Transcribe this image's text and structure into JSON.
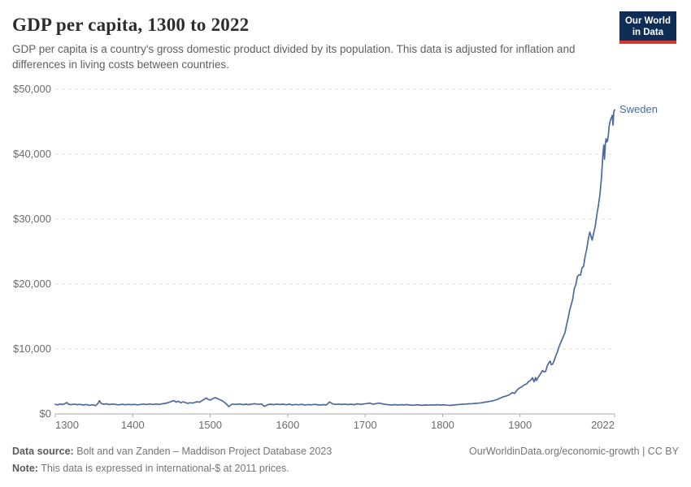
{
  "header": {
    "title": "GDP per capita, 1300 to 2022",
    "subtitle": "GDP per capita is a country's gross domestic product divided by its population. This data is adjusted for inflation and differences in living costs between countries.",
    "logo": {
      "line1": "Our World",
      "line2": "in Data",
      "bg": "#0d2d54",
      "accent": "#d6382f"
    }
  },
  "footer": {
    "source_label": "Data source:",
    "source_text": "Bolt and van Zanden – Maddison Project Database 2023",
    "note_label": "Note:",
    "note_text": "This data is expressed in international-$ at 2011 prices.",
    "link": "OurWorldinData.org/economic-growth | CC BY"
  },
  "chart_data": {
    "type": "line",
    "title": "GDP per capita, 1300 to 2022",
    "xlabel": "",
    "ylabel": "",
    "xlim": [
      1300,
      2022
    ],
    "ylim": [
      0,
      50000
    ],
    "grid": "horizontal-dashed",
    "legend": "end-of-line-label",
    "axis_color": "#a9a9a9",
    "grid_color": "#dcdcdc",
    "x_ticks": [
      {
        "value": 1300,
        "label": "1300"
      },
      {
        "value": 1400,
        "label": "1400"
      },
      {
        "value": 1500,
        "label": "1500"
      },
      {
        "value": 1600,
        "label": "1600"
      },
      {
        "value": 1700,
        "label": "1700"
      },
      {
        "value": 1800,
        "label": "1800"
      },
      {
        "value": 1900,
        "label": "1900"
      },
      {
        "value": 2022,
        "label": "2022"
      }
    ],
    "y_ticks": [
      {
        "value": 0,
        "label": "$0"
      },
      {
        "value": 10000,
        "label": "$10,000"
      },
      {
        "value": 20000,
        "label": "$20,000"
      },
      {
        "value": 30000,
        "label": "$30,000"
      },
      {
        "value": 40000,
        "label": "$40,000"
      },
      {
        "value": 50000,
        "label": "$50,000"
      }
    ],
    "series": [
      {
        "name": "Sweden",
        "color": "#4c6a9c",
        "points": [
          [
            1300,
            1480
          ],
          [
            1303,
            1400
          ],
          [
            1306,
            1520
          ],
          [
            1310,
            1450
          ],
          [
            1313,
            1620
          ],
          [
            1315,
            1750
          ],
          [
            1317,
            1500
          ],
          [
            1320,
            1430
          ],
          [
            1324,
            1510
          ],
          [
            1328,
            1420
          ],
          [
            1332,
            1480
          ],
          [
            1336,
            1380
          ],
          [
            1340,
            1450
          ],
          [
            1344,
            1330
          ],
          [
            1348,
            1410
          ],
          [
            1352,
            1280
          ],
          [
            1355,
            1600
          ],
          [
            1357,
            2050
          ],
          [
            1359,
            1650
          ],
          [
            1362,
            1500
          ],
          [
            1366,
            1560
          ],
          [
            1370,
            1450
          ],
          [
            1374,
            1520
          ],
          [
            1378,
            1460
          ],
          [
            1382,
            1400
          ],
          [
            1386,
            1490
          ],
          [
            1390,
            1430
          ],
          [
            1394,
            1470
          ],
          [
            1398,
            1420
          ],
          [
            1402,
            1470
          ],
          [
            1406,
            1400
          ],
          [
            1410,
            1460
          ],
          [
            1414,
            1530
          ],
          [
            1418,
            1450
          ],
          [
            1422,
            1540
          ],
          [
            1426,
            1460
          ],
          [
            1430,
            1520
          ],
          [
            1434,
            1470
          ],
          [
            1438,
            1560
          ],
          [
            1442,
            1620
          ],
          [
            1446,
            1750
          ],
          [
            1450,
            1930
          ],
          [
            1453,
            2060
          ],
          [
            1456,
            1820
          ],
          [
            1459,
            1960
          ],
          [
            1462,
            1720
          ],
          [
            1465,
            1870
          ],
          [
            1468,
            1760
          ],
          [
            1471,
            1620
          ],
          [
            1474,
            1730
          ],
          [
            1477,
            1660
          ],
          [
            1480,
            1770
          ],
          [
            1483,
            1870
          ],
          [
            1486,
            1800
          ],
          [
            1489,
            2020
          ],
          [
            1492,
            2220
          ],
          [
            1495,
            2480
          ],
          [
            1497,
            2260
          ],
          [
            1500,
            2120
          ],
          [
            1503,
            2320
          ],
          [
            1506,
            2500
          ],
          [
            1509,
            2400
          ],
          [
            1512,
            2210
          ],
          [
            1515,
            2060
          ],
          [
            1518,
            1820
          ],
          [
            1521,
            1520
          ],
          [
            1524,
            1130
          ],
          [
            1527,
            1420
          ],
          [
            1530,
            1530
          ],
          [
            1534,
            1460
          ],
          [
            1538,
            1540
          ],
          [
            1542,
            1420
          ],
          [
            1546,
            1500
          ],
          [
            1550,
            1420
          ],
          [
            1554,
            1520
          ],
          [
            1558,
            1570
          ],
          [
            1562,
            1470
          ],
          [
            1566,
            1540
          ],
          [
            1570,
            1160
          ],
          [
            1574,
            1430
          ],
          [
            1578,
            1500
          ],
          [
            1582,
            1430
          ],
          [
            1586,
            1520
          ],
          [
            1590,
            1450
          ],
          [
            1594,
            1500
          ],
          [
            1598,
            1430
          ],
          [
            1602,
            1500
          ],
          [
            1606,
            1390
          ],
          [
            1610,
            1460
          ],
          [
            1614,
            1400
          ],
          [
            1618,
            1490
          ],
          [
            1622,
            1360
          ],
          [
            1626,
            1450
          ],
          [
            1630,
            1400
          ],
          [
            1634,
            1480
          ],
          [
            1638,
            1430
          ],
          [
            1642,
            1370
          ],
          [
            1646,
            1440
          ],
          [
            1650,
            1380
          ],
          [
            1654,
            1850
          ],
          [
            1658,
            1550
          ],
          [
            1662,
            1460
          ],
          [
            1666,
            1530
          ],
          [
            1670,
            1450
          ],
          [
            1674,
            1520
          ],
          [
            1678,
            1440
          ],
          [
            1682,
            1500
          ],
          [
            1686,
            1430
          ],
          [
            1690,
            1560
          ],
          [
            1694,
            1480
          ],
          [
            1698,
            1540
          ],
          [
            1702,
            1600
          ],
          [
            1706,
            1680
          ],
          [
            1710,
            1500
          ],
          [
            1714,
            1590
          ],
          [
            1718,
            1680
          ],
          [
            1722,
            1560
          ],
          [
            1726,
            1480
          ],
          [
            1730,
            1430
          ],
          [
            1734,
            1380
          ],
          [
            1738,
            1440
          ],
          [
            1742,
            1370
          ],
          [
            1746,
            1430
          ],
          [
            1750,
            1390
          ],
          [
            1754,
            1440
          ],
          [
            1758,
            1380
          ],
          [
            1762,
            1340
          ],
          [
            1766,
            1410
          ],
          [
            1770,
            1370
          ],
          [
            1774,
            1330
          ],
          [
            1778,
            1390
          ],
          [
            1782,
            1350
          ],
          [
            1786,
            1400
          ],
          [
            1790,
            1370
          ],
          [
            1794,
            1420
          ],
          [
            1798,
            1380
          ],
          [
            1802,
            1400
          ],
          [
            1806,
            1350
          ],
          [
            1810,
            1310
          ],
          [
            1814,
            1380
          ],
          [
            1818,
            1420
          ],
          [
            1822,
            1460
          ],
          [
            1826,
            1500
          ],
          [
            1830,
            1520
          ],
          [
            1834,
            1560
          ],
          [
            1838,
            1590
          ],
          [
            1842,
            1620
          ],
          [
            1846,
            1660
          ],
          [
            1850,
            1710
          ],
          [
            1854,
            1800
          ],
          [
            1858,
            1880
          ],
          [
            1862,
            1960
          ],
          [
            1866,
            2060
          ],
          [
            1870,
            2210
          ],
          [
            1874,
            2430
          ],
          [
            1878,
            2620
          ],
          [
            1882,
            2760
          ],
          [
            1886,
            2950
          ],
          [
            1890,
            3290
          ],
          [
            1893,
            3160
          ],
          [
            1896,
            3680
          ],
          [
            1899,
            3990
          ],
          [
            1902,
            4180
          ],
          [
            1905,
            4440
          ],
          [
            1908,
            4610
          ],
          [
            1911,
            4950
          ],
          [
            1914,
            5240
          ],
          [
            1916,
            5590
          ],
          [
            1918,
            4940
          ],
          [
            1920,
            5610
          ],
          [
            1921,
            5150
          ],
          [
            1923,
            5560
          ],
          [
            1925,
            5940
          ],
          [
            1927,
            6310
          ],
          [
            1929,
            6690
          ],
          [
            1931,
            6480
          ],
          [
            1933,
            6550
          ],
          [
            1935,
            7380
          ],
          [
            1937,
            7860
          ],
          [
            1939,
            8140
          ],
          [
            1940,
            7590
          ],
          [
            1942,
            7680
          ],
          [
            1944,
            8210
          ],
          [
            1946,
            8930
          ],
          [
            1948,
            9480
          ],
          [
            1950,
            10280
          ],
          [
            1952,
            10860
          ],
          [
            1954,
            11380
          ],
          [
            1956,
            11990
          ],
          [
            1958,
            12520
          ],
          [
            1960,
            13700
          ],
          [
            1962,
            14720
          ],
          [
            1964,
            15940
          ],
          [
            1966,
            16810
          ],
          [
            1968,
            17690
          ],
          [
            1970,
            19270
          ],
          [
            1972,
            19960
          ],
          [
            1974,
            21170
          ],
          [
            1976,
            21430
          ],
          [
            1978,
            21380
          ],
          [
            1980,
            22510
          ],
          [
            1982,
            22740
          ],
          [
            1984,
            24270
          ],
          [
            1986,
            25380
          ],
          [
            1988,
            26890
          ],
          [
            1990,
            28010
          ],
          [
            1991,
            27610
          ],
          [
            1993,
            26770
          ],
          [
            1995,
            27880
          ],
          [
            1997,
            28900
          ],
          [
            1999,
            30630
          ],
          [
            2001,
            32010
          ],
          [
            2003,
            33680
          ],
          [
            2005,
            36270
          ],
          [
            2007,
            40090
          ],
          [
            2008,
            41390
          ],
          [
            2009,
            39220
          ],
          [
            2010,
            41480
          ],
          [
            2011,
            42400
          ],
          [
            2012,
            41900
          ],
          [
            2013,
            42090
          ],
          [
            2014,
            42970
          ],
          [
            2015,
            44340
          ],
          [
            2016,
            44920
          ],
          [
            2017,
            45370
          ],
          [
            2018,
            45640
          ],
          [
            2019,
            45990
          ],
          [
            2020,
            44480
          ],
          [
            2021,
            46480
          ],
          [
            2022,
            46840
          ]
        ]
      }
    ]
  }
}
